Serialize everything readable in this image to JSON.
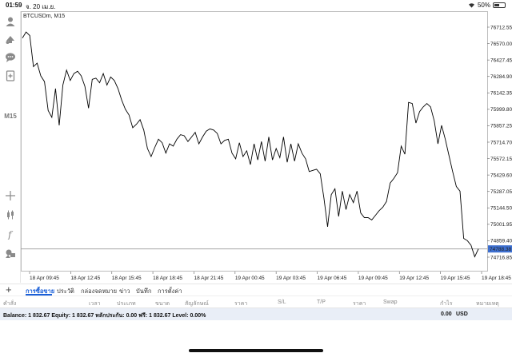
{
  "status": {
    "time": "01:59",
    "date": "จ. 20 เม.ย.",
    "battery": "50%",
    "battery_level": 0.5
  },
  "toolbar": {
    "icons": [
      "account-icon",
      "trade-icon",
      "chat-icon",
      "add-document-icon",
      "crosshair-icon",
      "candlestick-icon",
      "function-icon",
      "objects-icon"
    ],
    "timeframe": "M15"
  },
  "chart": {
    "symbol": "BTCUSDm, M15",
    "price_ticks": [
      "76712.55",
      "76570.00",
      "76427.45",
      "76284.90",
      "76142.35",
      "75999.80",
      "75857.25",
      "75714.70",
      "75572.15",
      "75429.60",
      "75287.05",
      "75144.50",
      "75001.95",
      "74859.40",
      "74716.85"
    ],
    "current_price": "74788.38",
    "time_ticks": [
      "18 Apr 09:45",
      "18 Apr 12:45",
      "18 Apr 15:45",
      "18 Apr 18:45",
      "18 Apr 21:45",
      "19 Apr 00:45",
      "19 Apr 03:45",
      "19 Apr 06:45",
      "19 Apr 09:45",
      "19 Apr 12:45",
      "19 Apr 15:45",
      "19 Apr 18:45"
    ],
    "line_color": "#000000",
    "price_line_color": "#9a9a9a",
    "price_tag_color": "#3d6fcf"
  },
  "chart_data": {
    "type": "line",
    "title": "BTCUSDm, M15",
    "ylim": [
      74716.85,
      76712.55
    ],
    "current_price": 74788.38,
    "series": [
      {
        "values": [
          76618,
          76670,
          76640,
          76370,
          76400,
          76290,
          76240,
          75990,
          75930,
          76180,
          75860,
          76210,
          76340,
          76250,
          76310,
          76330,
          76290,
          76200,
          76010,
          76260,
          76270,
          76230,
          76310,
          76210,
          76280,
          76250,
          76180,
          76080,
          76000,
          75950,
          75840,
          75870,
          75910,
          75820,
          75660,
          75590,
          75670,
          75740,
          75710,
          75620,
          75700,
          75680,
          75740,
          75780,
          75770,
          75720,
          75760,
          75800,
          75700,
          75760,
          75810,
          75830,
          75820,
          75790,
          75700,
          75730,
          75740,
          75620,
          75570,
          75710,
          75590,
          75640,
          75520,
          75700,
          75560,
          75720,
          75550,
          75760,
          75560,
          75660,
          75580,
          75760,
          75540,
          75700,
          75550,
          75700,
          75620,
          75570,
          75460,
          75470,
          75480,
          75440,
          75230,
          74980,
          75260,
          75310,
          75070,
          75290,
          75130,
          75260,
          75190,
          75290,
          75100,
          75060,
          75060,
          75040,
          75080,
          75120,
          75150,
          75200,
          75360,
          75400,
          75450,
          75680,
          75610,
          76060,
          76050,
          75880,
          75980,
          76020,
          76050,
          76020,
          75900,
          75700,
          75860,
          75740,
          75600,
          75460,
          75330,
          75290,
          74880,
          74860,
          74820,
          74720,
          74788
        ]
      }
    ]
  },
  "tabs": {
    "add": "+",
    "items": [
      "การซื้อขาย",
      "ประวัติ",
      "กล่องจดหมาย",
      "ข่าว",
      "บันทึก",
      "การตั้งค่า"
    ],
    "active": 0
  },
  "columns": [
    "คำสั่ง",
    "เวลา",
    "ประเภท",
    "ขนาด",
    "สัญลักษณ์",
    "ราคา",
    "S/L",
    "T/P",
    "ราคา",
    "Swap",
    "กำไร",
    "หมายเหตุ"
  ],
  "balance": {
    "text": "Balance: 1 832.67 Equity: 1 832.67 หลักประกัน: 0.00 ฟรี: 1 832.67 Level: 0.00%",
    "profit": "0.00",
    "currency": "USD"
  }
}
